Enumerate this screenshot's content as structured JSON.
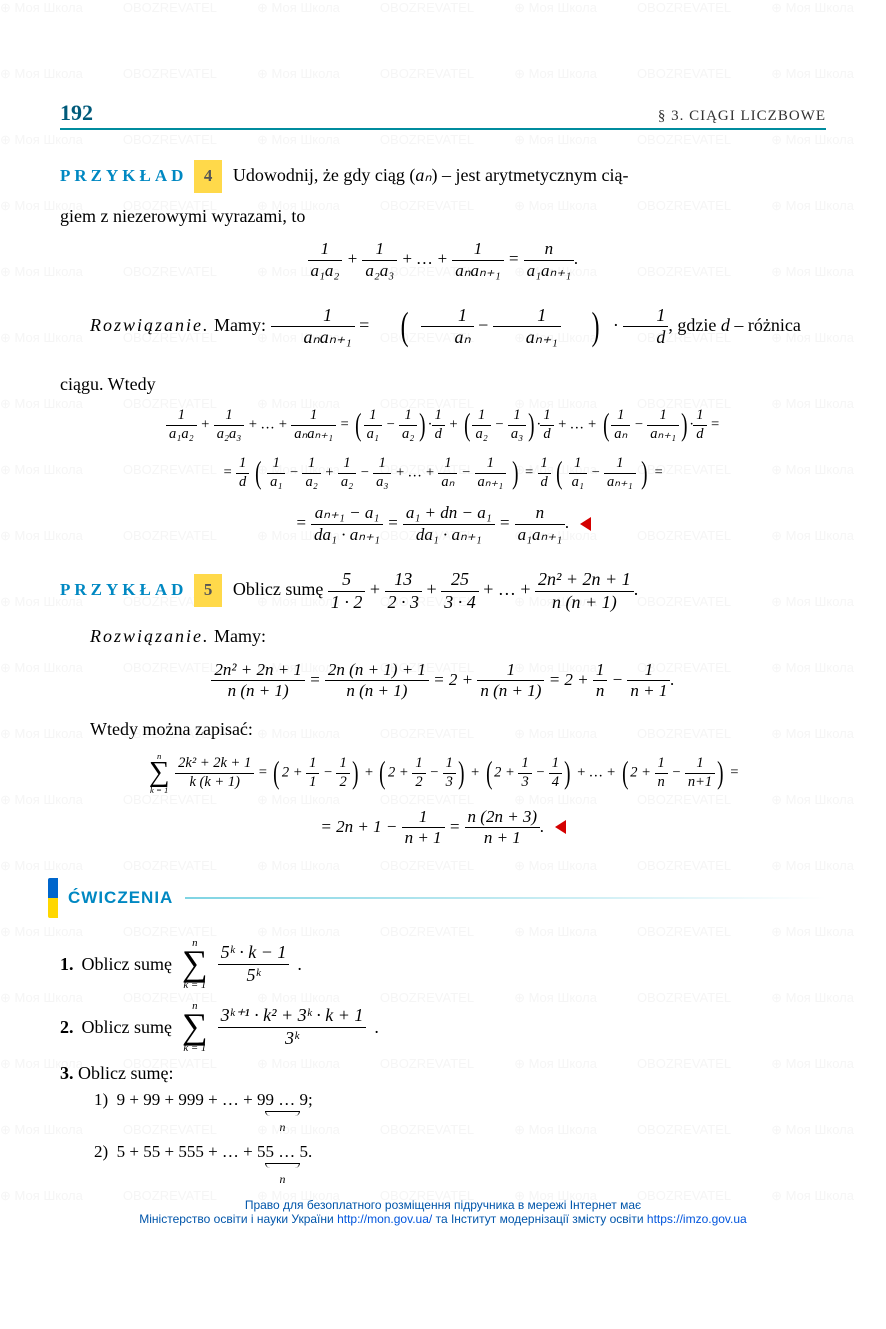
{
  "page": {
    "number": "192",
    "section": "§ 3. CIĄGI LICZBOWE"
  },
  "watermark": {
    "text1": "Моя Школа",
    "text2": "OBOZREVATEL"
  },
  "example4": {
    "label": "PRZYKŁAD",
    "number": "4",
    "intro1": "Udowodnij, że gdy ciąg (",
    "intro_seq": "aₙ",
    "intro2": ") – jest arytmetycznym cią-",
    "intro3": "giem z niezerowymi wyrazami, to",
    "eq_main_lhs_t1_num": "1",
    "eq_main_lhs_t1_den": "a₁a₂",
    "eq_main_lhs_t2_num": "1",
    "eq_main_lhs_t2_den": "a₂a₃",
    "eq_main_lhs_tn_num": "1",
    "eq_main_lhs_tn_den": "aₙaₙ₊₁",
    "eq_main_rhs_num": "n",
    "eq_main_rhs_den": "a₁aₙ₊₁",
    "rozw_label": "Rozwiązanie.",
    "rozw_text1": " Mamy: ",
    "rozw_gdzie": ", gdzie ",
    "rozw_d": "d",
    "rozw_roznica": " – różnica",
    "rozw_ciagu": "ciągu. Wtedy",
    "step3_lead": "= ",
    "final_num1": "aₙ₊₁ − a₁",
    "final_den1": "da₁ · aₙ₊₁",
    "final_num2": "a₁ + dn − a₁",
    "final_den2": "da₁ · aₙ₊₁",
    "final_num3": "n",
    "final_den3": "a₁aₙ₊₁"
  },
  "example5": {
    "label": "PRZYKŁAD",
    "number": "5",
    "intro": "Oblicz sumę ",
    "t1_num": "5",
    "t1_den": "1 · 2",
    "t2_num": "13",
    "t2_den": "2 · 3",
    "t3_num": "25",
    "t3_den": "3 · 4",
    "tn_num": "2n² + 2n + 1",
    "tn_den": "n (n + 1)",
    "rozw_label": "Rozwiązanie.",
    "rozw_mamy": " Mamy:",
    "decomp_l_num": "2n² + 2n + 1",
    "decomp_l_den": "n (n + 1)",
    "decomp_m_num": "2n (n + 1) + 1",
    "decomp_m_den": "n (n + 1)",
    "decomp_r1": "2 + ",
    "decomp_r1b_num": "1",
    "decomp_r1b_den": "n (n + 1)",
    "decomp_r2": " = 2 + ",
    "decomp_r2a_num": "1",
    "decomp_r2a_den": "n",
    "decomp_r2b_num": "1",
    "decomp_r2b_den": "n + 1",
    "wtedy": "Wtedy można zapisać:",
    "sum_low": "k = 1",
    "sum_up": "n",
    "sum_body_num": "2k² + 2k + 1",
    "sum_body_den": "k (k + 1)",
    "final_lhs": "= 2n + 1 − ",
    "final_mid_num": "1",
    "final_mid_den": "n + 1",
    "final_rhs_num": "n (2n + 3)",
    "final_rhs_den": "n + 1"
  },
  "cwiczenia": {
    "heading": "ĆWICZENIA",
    "ex1_num": "1.",
    "ex1_text": "Oblicz sumę ",
    "ex1_sum_low": "k = 1",
    "ex1_sum_up": "n",
    "ex1_frac_num": "5ᵏ · k − 1",
    "ex1_frac_den": "5ᵏ",
    "ex2_num": "2.",
    "ex2_text": "Oblicz sumę ",
    "ex2_sum_low": "k = 1",
    "ex2_sum_up": "n",
    "ex2_frac_num": "3ᵏ⁺¹ · k² + 3ᵏ · k + 1",
    "ex2_frac_den": "3ᵏ",
    "ex3_num": "3.",
    "ex3_text": "Oblicz sumę:",
    "ex3_1_label": "1)",
    "ex3_1_body": "9 + 99 + 999 + … + ",
    "ex3_1_rep": "99 … 9",
    "ex3_1_sub": "n",
    "ex3_1_end": ";",
    "ex3_2_label": "2)",
    "ex3_2_body": "5 + 55 + 555 + … + ",
    "ex3_2_rep": "55 … 5",
    "ex3_2_sub": "n",
    "ex3_2_end": "."
  },
  "footer": {
    "line1": "Право для безоплатного розміщення підручника в мережі Інтернет має",
    "line2a": "Міністерство освіти і науки України ",
    "link1": "http://mon.gov.ua/",
    "line2b": " та Інститут модернізації змісту освіти ",
    "link2": "https://imzo.gov.ua"
  },
  "colors": {
    "accent_blue": "#0088c2",
    "accent_teal": "#008c9e",
    "highlight_yellow": "#ffd94a",
    "red_marker": "#d40000",
    "footer_link": "#0055dd"
  }
}
